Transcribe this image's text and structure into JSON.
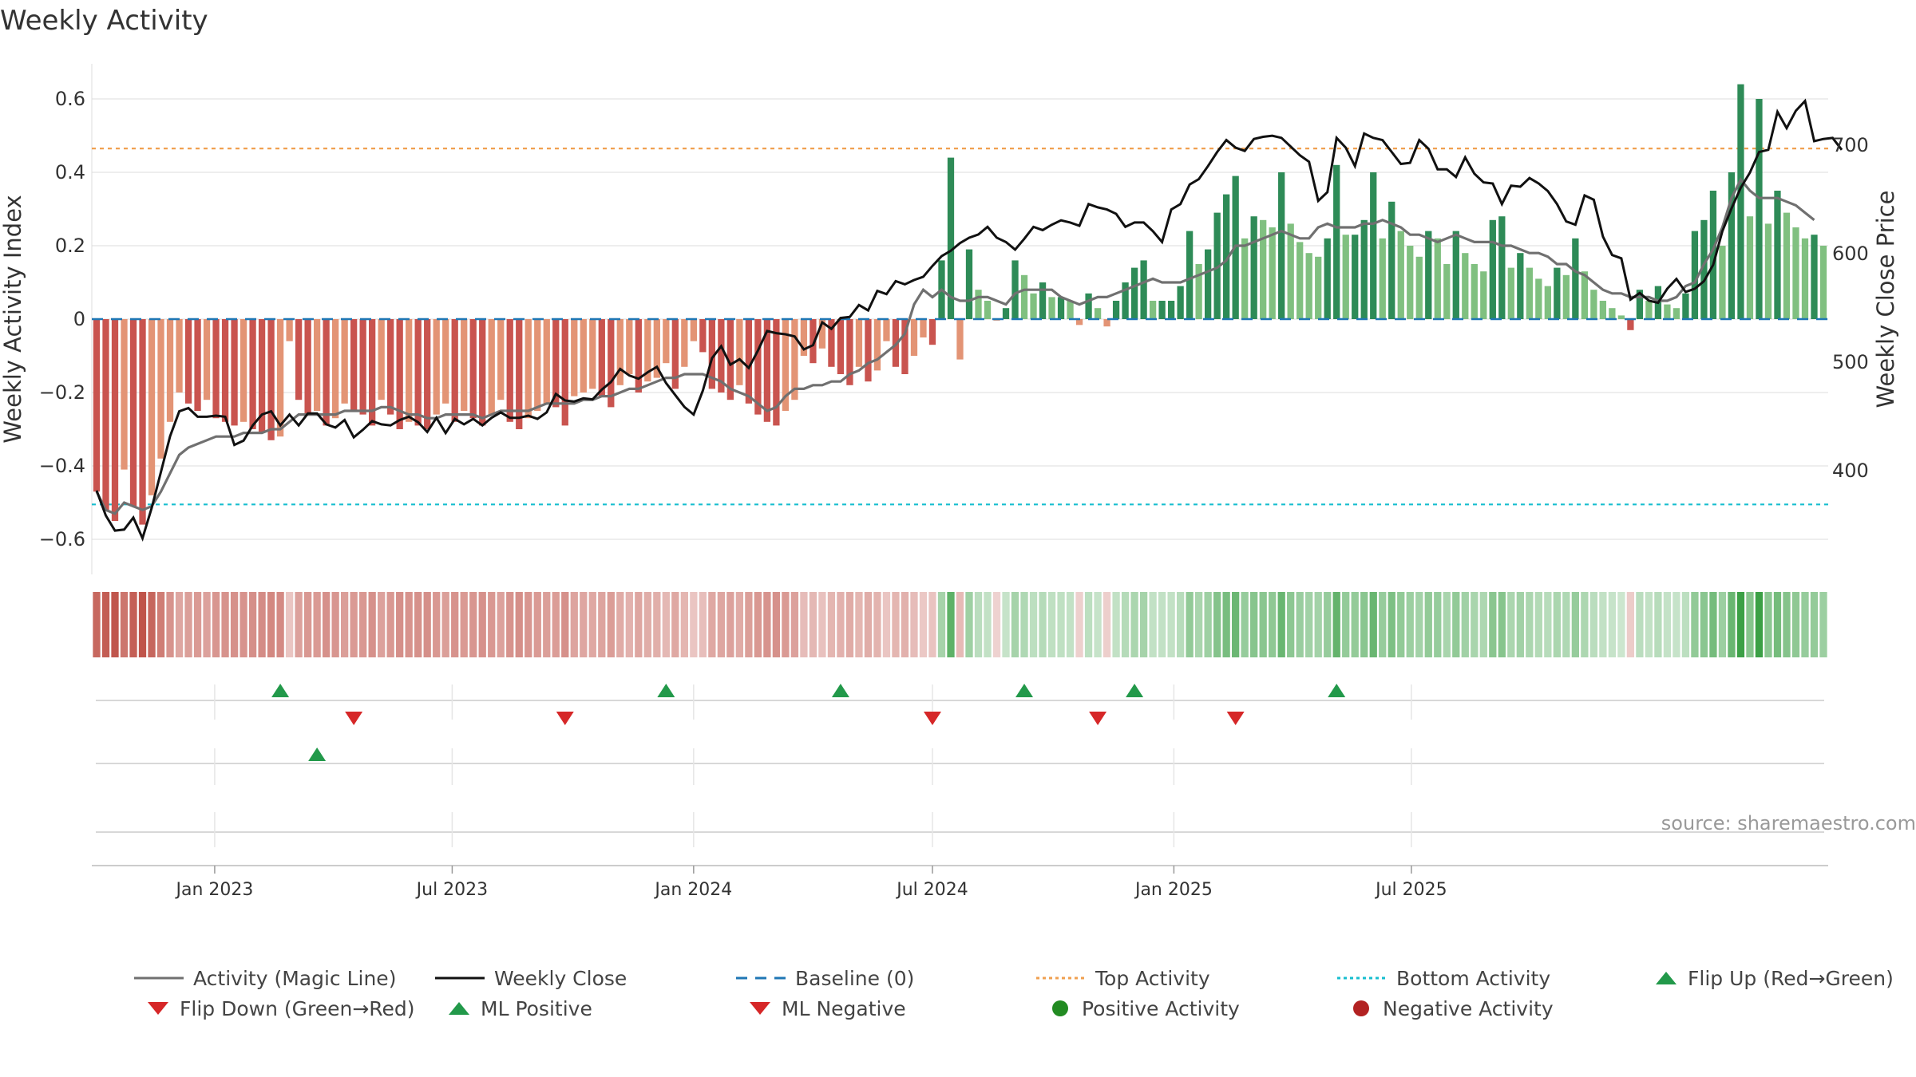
{
  "title": "Weekly Activity",
  "source": "source: sharemaestro.com",
  "colors": {
    "strong_red": "#c9544f",
    "light_red": "#e39475",
    "strong_green": "#2e8b57",
    "light_green": "#80c080",
    "magic_line": "#707070",
    "close_line": "#111111",
    "baseline": "#1f77b4",
    "top": "#f0a050",
    "bottom": "#17becf",
    "marker_up": "#22994a",
    "marker_down": "#d62728",
    "positive_dot": "#228b22",
    "negative_dot": "#b22222"
  },
  "chart_data": {
    "type": "bar",
    "start_date": "2022-10-03",
    "interval": "weekly",
    "ylabel": "Weekly Activity Index",
    "y2label": "Weekly Close Price",
    "ylim": [
      -0.7,
      0.7
    ],
    "y2lim": [
      300,
      775
    ],
    "yticks": [
      -0.6,
      -0.4,
      -0.2,
      0,
      0.2,
      0.4,
      0.6
    ],
    "ytick_labels": [
      "−0.6",
      "−0.4",
      "−0.2",
      "0",
      "0.2",
      "0.4",
      "0.6"
    ],
    "y2ticks": [
      400,
      500,
      600,
      700
    ],
    "xticks": [
      "2023-01-01",
      "2023-07-01",
      "2024-01-01",
      "2024-07-01",
      "2025-01-01",
      "2025-07-01"
    ],
    "xtick_labels": [
      "Jan 2023",
      "Jul 2023",
      "Jan 2024",
      "Jul 2024",
      "Jan 2025",
      "Jul 2025"
    ],
    "top_activity": 0.465,
    "bottom_activity": -0.505,
    "activity": [
      -0.47,
      -0.52,
      -0.55,
      -0.41,
      -0.51,
      -0.56,
      -0.48,
      -0.38,
      -0.28,
      -0.2,
      -0.23,
      -0.25,
      -0.22,
      -0.27,
      -0.28,
      -0.29,
      -0.28,
      -0.3,
      -0.31,
      -0.33,
      -0.32,
      -0.06,
      -0.22,
      -0.26,
      -0.25,
      -0.29,
      -0.27,
      -0.23,
      -0.25,
      -0.26,
      -0.29,
      -0.22,
      -0.26,
      -0.3,
      -0.28,
      -0.29,
      -0.3,
      -0.26,
      -0.23,
      -0.28,
      -0.25,
      -0.27,
      -0.29,
      -0.26,
      -0.22,
      -0.28,
      -0.3,
      -0.27,
      -0.25,
      -0.23,
      -0.24,
      -0.29,
      -0.21,
      -0.2,
      -0.19,
      -0.21,
      -0.24,
      -0.18,
      -0.15,
      -0.2,
      -0.17,
      -0.16,
      -0.12,
      -0.19,
      -0.13,
      -0.06,
      -0.09,
      -0.19,
      -0.2,
      -0.22,
      -0.18,
      -0.23,
      -0.26,
      -0.28,
      -0.29,
      -0.25,
      -0.22,
      -0.1,
      -0.12,
      -0.08,
      -0.13,
      -0.15,
      -0.18,
      -0.13,
      -0.17,
      -0.14,
      -0.06,
      -0.13,
      -0.15,
      -0.1,
      -0.05,
      -0.07,
      0.16,
      0.44,
      -0.11,
      0.19,
      0.08,
      0.05,
      -0.004,
      0.03,
      0.16,
      0.12,
      0.07,
      0.1,
      0.06,
      0.06,
      0.05,
      -0.016,
      0.07,
      0.03,
      -0.02,
      0.05,
      0.1,
      0.14,
      0.16,
      0.05,
      0.05,
      0.05,
      0.09,
      0.24,
      0.15,
      0.19,
      0.29,
      0.34,
      0.39,
      0.22,
      0.28,
      0.27,
      0.25,
      0.4,
      0.26,
      0.21,
      0.18,
      0.17,
      0.22,
      0.42,
      0.23,
      0.23,
      0.27,
      0.4,
      0.22,
      0.32,
      0.24,
      0.2,
      0.17,
      0.24,
      0.22,
      0.15,
      0.24,
      0.18,
      0.15,
      0.13,
      0.27,
      0.28,
      0.14,
      0.18,
      0.14,
      0.11,
      0.09,
      0.14,
      0.12,
      0.22,
      0.13,
      0.08,
      0.05,
      0.03,
      0.01,
      -0.03,
      0.08,
      0.05,
      0.09,
      0.04,
      0.03,
      0.07,
      0.24,
      0.27,
      0.35,
      0.2,
      0.4,
      0.64,
      0.28,
      0.6,
      0.26,
      0.35,
      0.29,
      0.25,
      0.22,
      0.23,
      0.2
    ],
    "magic_line": [
      -0.47,
      -0.52,
      -0.53,
      -0.5,
      -0.51,
      -0.52,
      -0.51,
      -0.47,
      -0.42,
      -0.37,
      -0.35,
      -0.34,
      -0.33,
      -0.32,
      -0.32,
      -0.32,
      -0.31,
      -0.31,
      -0.31,
      -0.3,
      -0.3,
      -0.28,
      -0.26,
      -0.26,
      -0.26,
      -0.26,
      -0.26,
      -0.25,
      -0.25,
      -0.25,
      -0.25,
      -0.24,
      -0.24,
      -0.25,
      -0.26,
      -0.26,
      -0.27,
      -0.27,
      -0.26,
      -0.26,
      -0.26,
      -0.26,
      -0.27,
      -0.26,
      -0.25,
      -0.25,
      -0.25,
      -0.25,
      -0.24,
      -0.23,
      -0.23,
      -0.23,
      -0.23,
      -0.22,
      -0.22,
      -0.21,
      -0.21,
      -0.2,
      -0.19,
      -0.19,
      -0.18,
      -0.17,
      -0.16,
      -0.16,
      -0.15,
      -0.15,
      -0.15,
      -0.16,
      -0.17,
      -0.19,
      -0.2,
      -0.21,
      -0.23,
      -0.25,
      -0.24,
      -0.21,
      -0.19,
      -0.19,
      -0.18,
      -0.18,
      -0.17,
      -0.17,
      -0.15,
      -0.14,
      -0.12,
      -0.11,
      -0.09,
      -0.07,
      -0.04,
      0.04,
      0.08,
      0.06,
      0.08,
      0.06,
      0.05,
      0.05,
      0.06,
      0.06,
      0.05,
      0.04,
      0.07,
      0.08,
      0.08,
      0.08,
      0.08,
      0.06,
      0.05,
      0.04,
      0.05,
      0.06,
      0.06,
      0.07,
      0.08,
      0.09,
      0.1,
      0.11,
      0.1,
      0.1,
      0.1,
      0.11,
      0.12,
      0.13,
      0.14,
      0.16,
      0.2,
      0.2,
      0.21,
      0.22,
      0.23,
      0.24,
      0.23,
      0.22,
      0.22,
      0.25,
      0.26,
      0.25,
      0.25,
      0.25,
      0.26,
      0.26,
      0.27,
      0.26,
      0.25,
      0.23,
      0.23,
      0.22,
      0.21,
      0.22,
      0.23,
      0.22,
      0.21,
      0.21,
      0.21,
      0.2,
      0.2,
      0.19,
      0.18,
      0.18,
      0.17,
      0.15,
      0.15,
      0.13,
      0.12,
      0.1,
      0.08,
      0.07,
      0.07,
      0.06,
      0.06,
      0.06,
      0.05,
      0.05,
      0.06,
      0.09,
      0.1,
      0.15,
      0.19,
      0.25,
      0.33,
      0.38,
      0.35,
      0.33,
      0.33,
      0.33,
      0.32,
      0.31,
      0.29,
      0.27
    ],
    "weekly_close": [
      381,
      358,
      344,
      345,
      356,
      337,
      365,
      398,
      431,
      454,
      457,
      449,
      449,
      450,
      449,
      423,
      427,
      441,
      451,
      454,
      441,
      451,
      441,
      452,
      452,
      442,
      439,
      446,
      430,
      437,
      445,
      442,
      441,
      446,
      449,
      444,
      435,
      448,
      434,
      447,
      442,
      447,
      441,
      448,
      453,
      448,
      448,
      450,
      447,
      453,
      470,
      464,
      463,
      466,
      465,
      474,
      481,
      493,
      487,
      484,
      490,
      495,
      480,
      469,
      458,
      451,
      473,
      503,
      514,
      497,
      502,
      494,
      510,
      528,
      526,
      525,
      523,
      511,
      515,
      536,
      530,
      540,
      541,
      552,
      547,
      565,
      562,
      574,
      571,
      575,
      578,
      588,
      597,
      602,
      609,
      614,
      617,
      624,
      614,
      610,
      603,
      613,
      624,
      621,
      626,
      630,
      628,
      625,
      645,
      642,
      640,
      636,
      624,
      628,
      628,
      620,
      610,
      640,
      645,
      663,
      668,
      680,
      693,
      704,
      697,
      694,
      705,
      707,
      708,
      706,
      698,
      690,
      684,
      648,
      656,
      706,
      697,
      680,
      710,
      706,
      704,
      693,
      682,
      683,
      704,
      696,
      677,
      677,
      670,
      688,
      673,
      665,
      664,
      645,
      662,
      661,
      669,
      664,
      657,
      645,
      629,
      626,
      653,
      649,
      615,
      598,
      595,
      557,
      563,
      556,
      554,
      567,
      576,
      564,
      567,
      574,
      589,
      620,
      641,
      660,
      674,
      693,
      695,
      730,
      715,
      731,
      740,
      703,
      705,
      706,
      695
    ],
    "flip_up": [
      20,
      62,
      81,
      101,
      113,
      135
    ],
    "flip_down": [
      28,
      51,
      91,
      109,
      124
    ],
    "ml_positive": [
      24
    ],
    "ml_negative": [],
    "positive_activity": [],
    "negative_activity": []
  },
  "legend": [
    {
      "key": "magic_line",
      "label": "Activity (Magic Line)"
    },
    {
      "key": "weekly_close",
      "label": "Weekly Close"
    },
    {
      "key": "baseline",
      "label": "Baseline (0)"
    },
    {
      "key": "top",
      "label": "Top Activity"
    },
    {
      "key": "bottom",
      "label": "Bottom Activity"
    },
    {
      "key": "flip_up",
      "label": "Flip Up (Red→Green)"
    },
    {
      "key": "flip_down",
      "label": "Flip Down (Green→Red)"
    },
    {
      "key": "ml_positive",
      "label": "ML Positive"
    },
    {
      "key": "ml_negative",
      "label": "ML Negative"
    },
    {
      "key": "positive_activity",
      "label": "Positive Activity"
    },
    {
      "key": "negative_activity",
      "label": "Negative Activity"
    }
  ]
}
